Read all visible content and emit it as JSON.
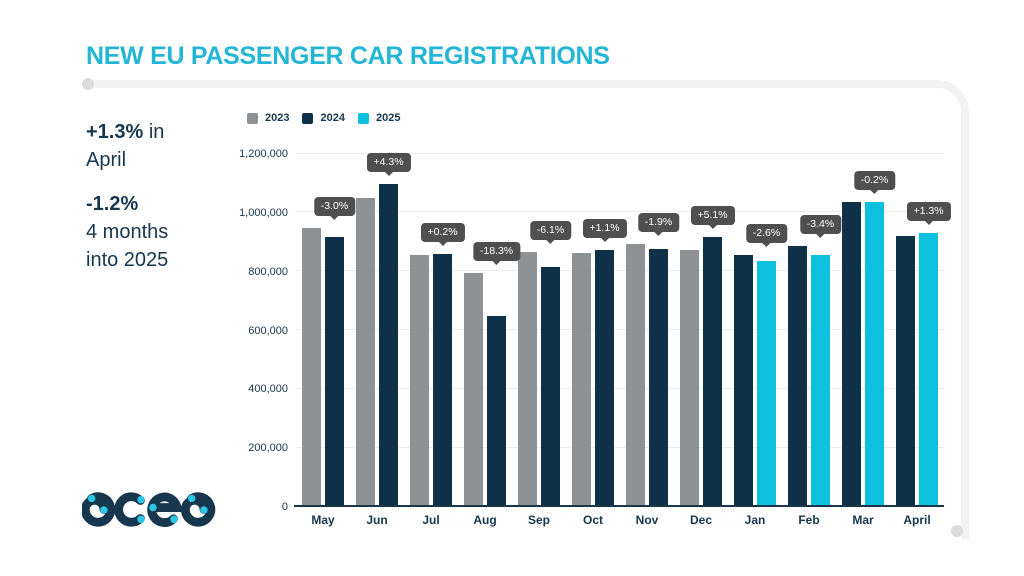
{
  "title": "NEW EU PASSENGER CAR REGISTRATIONS",
  "stats": {
    "highlight1": "+1.3%",
    "rest1": " in",
    "line2": "April",
    "highlight2": "-1.2%",
    "line3": "4 months",
    "line4": "into 2025"
  },
  "logo": {
    "name": "acea"
  },
  "colors": {
    "accent_cyan": "#24b6d5",
    "navy_text": "#16374e",
    "series_2023": "#8f9294",
    "series_2024": "#0e3048",
    "series_2025": "#0cc0de",
    "tooltip_bg": "#4f4f4f",
    "frame_gray": "#f2f2f2"
  },
  "chart_data": {
    "type": "bar",
    "title": "NEW EU PASSENGER CAR REGISTRATIONS",
    "categories": [
      "May",
      "Jun",
      "Jul",
      "Aug",
      "Sep",
      "Oct",
      "Nov",
      "Dec",
      "Jan",
      "Feb",
      "Mar",
      "April"
    ],
    "series": [
      {
        "name": "2023",
        "color": "#8f9294",
        "values": [
          940000,
          1045000,
          850000,
          788000,
          860000,
          857000,
          886000,
          867000,
          null,
          null,
          null,
          null
        ]
      },
      {
        "name": "2024",
        "color": "#0e3048",
        "values": [
          911000,
          1090000,
          852000,
          644000,
          808000,
          866000,
          869000,
          911000,
          851000,
          881000,
          1031000,
          913000
        ]
      },
      {
        "name": "2025",
        "color": "#0cc0de",
        "values": [
          null,
          null,
          null,
          null,
          null,
          null,
          null,
          null,
          829000,
          851000,
          1029000,
          925000
        ]
      }
    ],
    "labels": [
      "-3.0%",
      "+4.3%",
      "+0.2%",
      "-18.3%",
      "-6.1%",
      "+1.1%",
      "-1.9%",
      "+5.1%",
      "-2.6%",
      "-3.4%",
      "-0.2%",
      "+1.3%"
    ],
    "yticks": [
      "0",
      "200,000",
      "400,000",
      "600,000",
      "800,000",
      "1,000,000",
      "1,200,000"
    ],
    "ylim": [
      0,
      1200000
    ],
    "legend": [
      "2023",
      "2024",
      "2025"
    ],
    "legend_position": "top-left",
    "grid": true
  }
}
